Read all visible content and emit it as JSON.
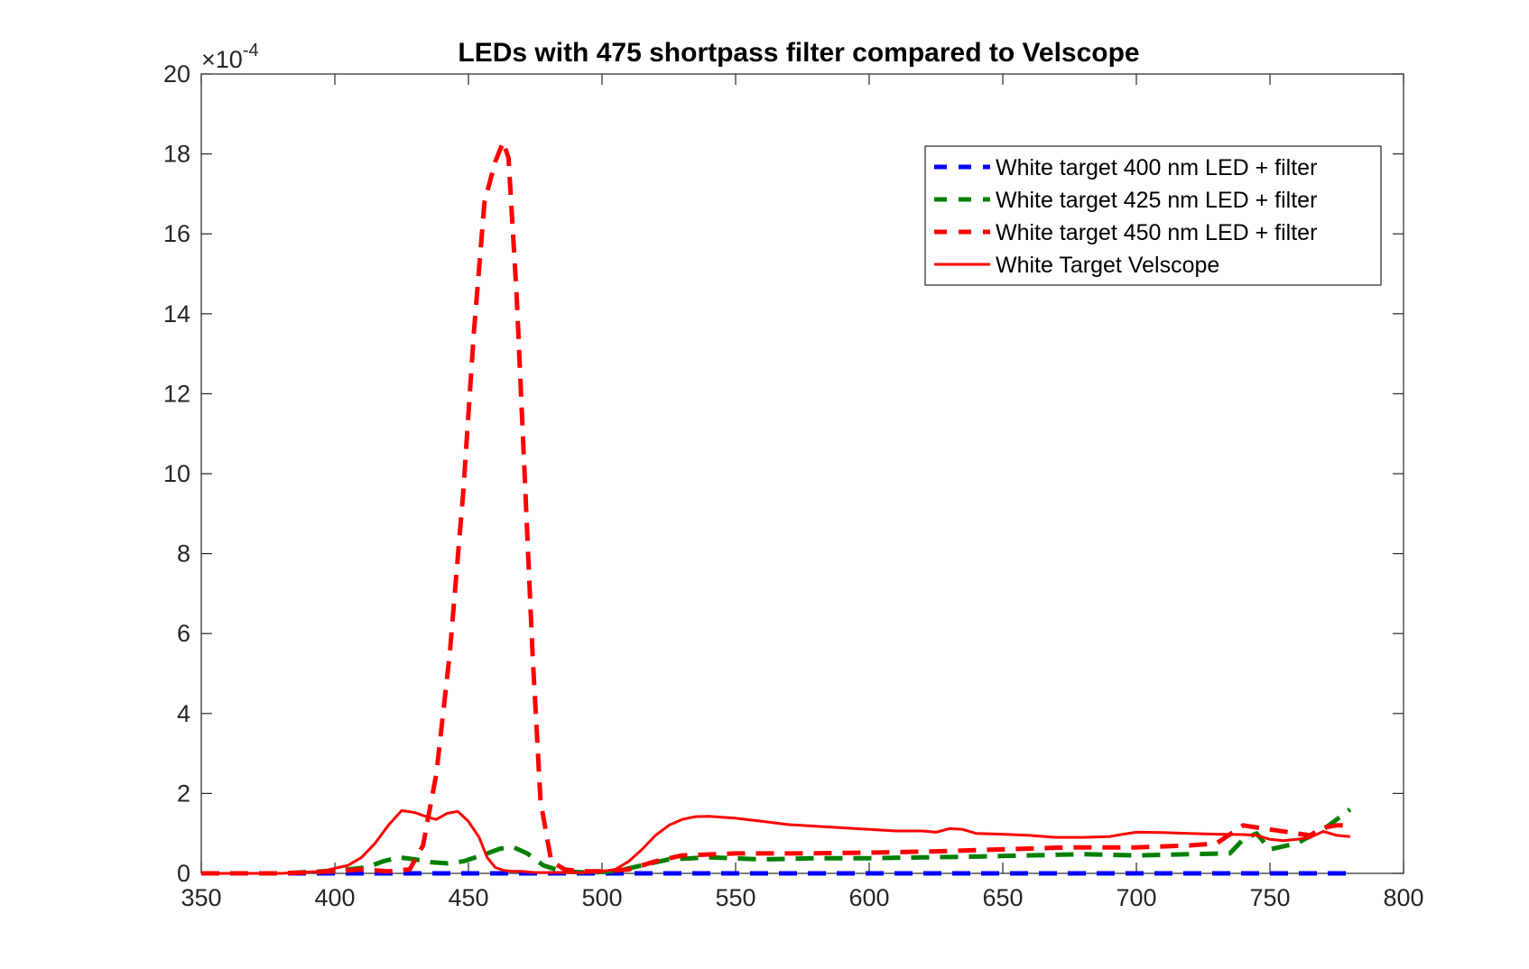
{
  "chart_data": {
    "type": "line",
    "title": "LEDs with 475 shortpass filter compared to Velscope",
    "xlabel": "",
    "ylabel": "",
    "xlim": [
      350,
      800
    ],
    "ylim": [
      0,
      20
    ],
    "y_multiplier_base": "10",
    "y_multiplier_exponent": "-4",
    "x_ticks": [
      350,
      400,
      450,
      500,
      550,
      600,
      650,
      700,
      750,
      800
    ],
    "y_ticks": [
      0,
      2,
      4,
      6,
      8,
      10,
      12,
      14,
      16,
      18,
      20
    ],
    "grid": false,
    "box": true,
    "legend_position": "top-right",
    "series": [
      {
        "name": "White target 400 nm LED + filter",
        "color": "#0000ff",
        "style": "dashed",
        "x": [
          350,
          380,
          400,
          450,
          500,
          550,
          600,
          650,
          700,
          750,
          780
        ],
        "y": [
          0,
          0,
          0,
          0,
          0,
          0,
          0,
          0,
          0,
          0,
          0
        ]
      },
      {
        "name": "White target 425 nm LED + filter",
        "color": "#008000",
        "style": "dashed",
        "x": [
          350,
          380,
          395,
          405,
          412,
          418,
          424,
          430,
          436,
          442,
          448,
          455,
          462,
          467,
          472,
          478,
          485,
          495,
          505,
          515,
          525,
          540,
          560,
          580,
          600,
          620,
          640,
          660,
          680,
          700,
          720,
          735,
          740,
          745,
          750,
          760,
          770,
          780
        ],
        "y": [
          0,
          0,
          0.05,
          0.1,
          0.15,
          0.3,
          0.4,
          0.35,
          0.28,
          0.25,
          0.3,
          0.45,
          0.62,
          0.65,
          0.5,
          0.2,
          0.05,
          0.02,
          0.05,
          0.2,
          0.35,
          0.4,
          0.35,
          0.38,
          0.38,
          0.4,
          0.42,
          0.45,
          0.48,
          0.45,
          0.48,
          0.5,
          0.85,
          1.0,
          0.6,
          0.75,
          1.1,
          1.6
        ]
      },
      {
        "name": "White target 450 nm LED + filter",
        "color": "#ff0000",
        "style": "dashed",
        "x": [
          350,
          380,
          400,
          410,
          420,
          428,
          433,
          438,
          443,
          448,
          452,
          456,
          460,
          463,
          465,
          468,
          471,
          474,
          477,
          481,
          486,
          492,
          500,
          510,
          520,
          530,
          550,
          575,
          600,
          625,
          650,
          675,
          700,
          720,
          730,
          740,
          745,
          750,
          760,
          765,
          770,
          775,
          780
        ],
        "y": [
          0,
          0,
          0.05,
          0.1,
          0.05,
          0.1,
          0.7,
          2.5,
          5.5,
          9.5,
          13.5,
          16.8,
          17.8,
          18.3,
          17.9,
          14.5,
          10.0,
          5.5,
          1.8,
          0.3,
          0.1,
          0.05,
          0.05,
          0.1,
          0.3,
          0.45,
          0.5,
          0.5,
          0.52,
          0.55,
          0.6,
          0.65,
          0.65,
          0.7,
          0.75,
          1.2,
          1.15,
          1.1,
          1.0,
          0.95,
          1.15,
          1.2,
          1.2
        ]
      },
      {
        "name": "White Target Velscope",
        "color": "#ff0000",
        "style": "solid",
        "x": [
          350,
          380,
          395,
          405,
          410,
          415,
          420,
          425,
          430,
          435,
          438,
          442,
          446,
          450,
          454,
          457,
          460,
          463,
          466,
          470,
          475,
          480,
          485,
          490,
          495,
          500,
          505,
          510,
          515,
          520,
          525,
          530,
          535,
          540,
          550,
          560,
          570,
          580,
          590,
          600,
          610,
          620,
          625,
          630,
          635,
          640,
          650,
          660,
          670,
          680,
          690,
          695,
          700,
          710,
          720,
          730,
          740,
          745,
          750,
          755,
          760,
          765,
          770,
          775,
          780
        ],
        "y": [
          0,
          0,
          0.05,
          0.2,
          0.4,
          0.75,
          1.2,
          1.57,
          1.52,
          1.4,
          1.35,
          1.5,
          1.55,
          1.3,
          0.9,
          0.4,
          0.15,
          0.08,
          0.05,
          0.05,
          0.02,
          0.02,
          0.02,
          0.02,
          0.02,
          0.05,
          0.1,
          0.3,
          0.6,
          0.95,
          1.2,
          1.35,
          1.42,
          1.43,
          1.38,
          1.3,
          1.22,
          1.18,
          1.14,
          1.1,
          1.06,
          1.06,
          1.03,
          1.12,
          1.1,
          1.0,
          0.98,
          0.95,
          0.9,
          0.9,
          0.92,
          0.98,
          1.03,
          1.02,
          1.0,
          0.98,
          0.97,
          0.95,
          0.85,
          0.82,
          0.85,
          0.9,
          1.05,
          0.95,
          0.92
        ]
      }
    ]
  }
}
